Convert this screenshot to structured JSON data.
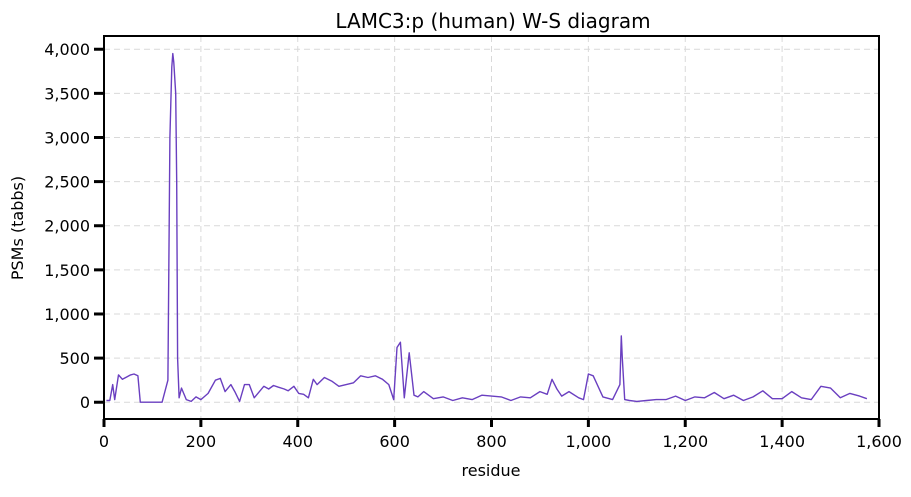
{
  "chart_data": {
    "type": "line",
    "title": "LAMC3:p (human) W-S diagram",
    "xlabel": "residue",
    "ylabel": "PSMs (tabbs)",
    "xlim": [
      0,
      1600
    ],
    "ylim": [
      -190,
      4150
    ],
    "x_ticks": [
      0,
      200,
      400,
      600,
      800,
      1000,
      1200,
      1400,
      1600
    ],
    "x_tick_labels": [
      "0",
      "200",
      "400",
      "600",
      "800",
      "1,000",
      "1,200",
      "1,400",
      "1,600"
    ],
    "y_ticks": [
      0,
      500,
      1000,
      1500,
      2000,
      2500,
      3000,
      3500,
      4000
    ],
    "y_tick_labels": [
      "0",
      "500",
      "1,000",
      "1,500",
      "2,000",
      "2,500",
      "3,000",
      "3,500",
      "4,000"
    ],
    "grid": true,
    "line_color": "#6a3fc0",
    "series": [
      {
        "x": [
          5,
          12,
          18,
          22,
          30,
          38,
          55,
          62,
          70,
          75,
          85,
          120,
          132,
          136,
          140,
          142,
          144,
          148,
          150,
          152,
          155,
          160,
          170,
          180,
          190,
          200,
          215,
          230,
          240,
          250,
          262,
          270,
          280,
          290,
          300,
          310,
          330,
          340,
          350,
          360,
          372,
          380,
          392,
          402,
          412,
          422,
          432,
          440,
          455,
          470,
          485,
          500,
          515,
          530,
          545,
          560,
          575,
          588,
          598,
          605,
          612,
          620,
          630,
          640,
          648,
          660,
          680,
          700,
          720,
          740,
          760,
          780,
          800,
          820,
          840,
          860,
          880,
          900,
          915,
          925,
          935,
          945,
          960,
          980,
          990,
          1000,
          1010,
          1030,
          1050,
          1065,
          1068,
          1070,
          1075,
          1085,
          1100,
          1120,
          1140,
          1160,
          1180,
          1200,
          1220,
          1240,
          1260,
          1280,
          1300,
          1320,
          1340,
          1360,
          1380,
          1400,
          1420,
          1440,
          1460,
          1480,
          1500,
          1520,
          1540,
          1560,
          1575
        ],
        "y": [
          20,
          20,
          200,
          30,
          310,
          260,
          310,
          320,
          300,
          0,
          0,
          0,
          250,
          3000,
          3800,
          3950,
          3850,
          3500,
          2500,
          500,
          50,
          160,
          30,
          10,
          60,
          30,
          100,
          250,
          270,
          120,
          200,
          120,
          10,
          200,
          200,
          50,
          180,
          150,
          190,
          170,
          150,
          130,
          180,
          100,
          90,
          50,
          260,
          200,
          280,
          240,
          180,
          200,
          220,
          300,
          280,
          300,
          260,
          200,
          30,
          620,
          680,
          50,
          560,
          80,
          60,
          120,
          40,
          60,
          20,
          50,
          30,
          80,
          70,
          60,
          20,
          60,
          50,
          120,
          90,
          260,
          150,
          70,
          120,
          50,
          30,
          320,
          300,
          60,
          30,
          200,
          750,
          500,
          30,
          20,
          10,
          20,
          30,
          30,
          70,
          20,
          60,
          50,
          110,
          40,
          80,
          20,
          60,
          130,
          40,
          40,
          120,
          50,
          30,
          180,
          160,
          50,
          100,
          70,
          40
        ]
      }
    ]
  }
}
